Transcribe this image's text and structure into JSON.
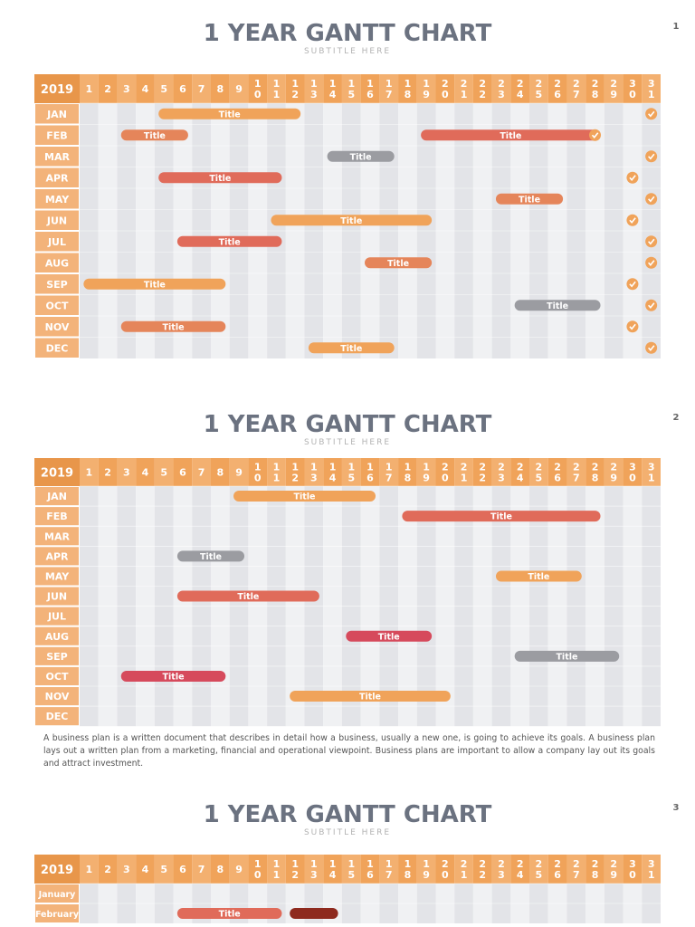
{
  "slides": [
    {
      "page": "1",
      "title": "1 YEAR GANTT CHART",
      "subtitle": "SUBTITLE HERE",
      "year": "2019",
      "days": [
        1,
        2,
        3,
        4,
        5,
        6,
        7,
        8,
        9,
        10,
        11,
        12,
        13,
        14,
        15,
        16,
        17,
        18,
        19,
        20,
        21,
        22,
        23,
        24,
        25,
        26,
        27,
        28,
        29,
        30,
        31
      ],
      "months": [
        "JAN",
        "FEB",
        "MAR",
        "APR",
        "MAY",
        "JUN",
        "JUL",
        "AUG",
        "SEP",
        "OCT",
        "NOV",
        "DEC"
      ],
      "month_lengths": [
        31,
        28,
        31,
        30,
        31,
        30,
        31,
        31,
        30,
        31,
        30,
        31
      ],
      "tasks": [
        {
          "month": 0,
          "start": 5,
          "end": 12,
          "label": "Title",
          "color": "#f0a35a"
        },
        {
          "month": 1,
          "start": 3,
          "end": 6,
          "label": "Title",
          "color": "#e5855a"
        },
        {
          "month": 1,
          "start": 19,
          "end": 28,
          "label": "Title",
          "color": "#e06b5a"
        },
        {
          "month": 2,
          "start": 14,
          "end": 17,
          "label": "Title",
          "color": "#9b9ca1"
        },
        {
          "month": 3,
          "start": 5,
          "end": 11,
          "label": "Title",
          "color": "#e06b5a"
        },
        {
          "month": 4,
          "start": 23,
          "end": 26,
          "label": "Title",
          "color": "#e5855a"
        },
        {
          "month": 5,
          "start": 11,
          "end": 19,
          "label": "Title",
          "color": "#f0a35a"
        },
        {
          "month": 6,
          "start": 6,
          "end": 11,
          "label": "Title",
          "color": "#e06b5a"
        },
        {
          "month": 7,
          "start": 16,
          "end": 19,
          "label": "Title",
          "color": "#e5855a"
        },
        {
          "month": 8,
          "start": 1,
          "end": 8,
          "label": "Title",
          "color": "#f0a35a"
        },
        {
          "month": 9,
          "start": 24,
          "end": 28,
          "label": "Title",
          "color": "#9b9ca1"
        },
        {
          "month": 10,
          "start": 3,
          "end": 8,
          "label": "Title",
          "color": "#e5855a"
        },
        {
          "month": 11,
          "start": 13,
          "end": 17,
          "label": "Title",
          "color": "#f0a35a"
        }
      ]
    },
    {
      "page": "2",
      "title": "1 YEAR GANTT CHART",
      "subtitle": "SUBTITLE HERE",
      "year": "2019",
      "days": [
        1,
        2,
        3,
        4,
        5,
        6,
        7,
        8,
        9,
        10,
        11,
        12,
        13,
        14,
        15,
        16,
        17,
        18,
        19,
        20,
        21,
        22,
        23,
        24,
        25,
        26,
        27,
        28,
        29,
        30,
        31
      ],
      "months": [
        "JAN",
        "FEB",
        "MAR",
        "APR",
        "MAY",
        "JUN",
        "JUL",
        "AUG",
        "SEP",
        "OCT",
        "NOV",
        "DEC"
      ],
      "tasks": [
        {
          "month": 0,
          "start": 9,
          "end": 16,
          "label": "Title",
          "color": "#f0a35a"
        },
        {
          "month": 1,
          "start": 18,
          "end": 28,
          "label": "Title",
          "color": "#e06b5a"
        },
        {
          "month": 3,
          "start": 6,
          "end": 9,
          "label": "Title",
          "color": "#9b9ca1"
        },
        {
          "month": 4,
          "start": 23,
          "end": 27,
          "label": "Title",
          "color": "#f0a35a"
        },
        {
          "month": 5,
          "start": 6,
          "end": 13,
          "label": "Title",
          "color": "#e06b5a"
        },
        {
          "month": 7,
          "start": 15,
          "end": 19,
          "label": "Title",
          "color": "#d64a5c"
        },
        {
          "month": 8,
          "start": 24,
          "end": 29,
          "label": "Title",
          "color": "#9b9ca1"
        },
        {
          "month": 9,
          "start": 3,
          "end": 8,
          "label": "Title",
          "color": "#d64a5c"
        },
        {
          "month": 10,
          "start": 12,
          "end": 20,
          "label": "Title",
          "color": "#f0a35a"
        }
      ],
      "note": "A business plan is a written document that describes in detail how a business, usually a new one, is going to achieve its goals. A business plan lays out a written plan from a marketing, financial and operational viewpoint. Business plans are important to allow a company lay out its goals and attract investment."
    },
    {
      "page": "3",
      "title": "1 YEAR GANTT CHART",
      "subtitle": "SUBTITLE HERE",
      "year": "2019",
      "days": [
        1,
        2,
        3,
        4,
        5,
        6,
        7,
        8,
        9,
        10,
        11,
        12,
        13,
        14,
        15,
        16,
        17,
        18,
        19,
        20,
        21,
        22,
        23,
        24,
        25,
        26,
        27,
        28,
        29,
        30,
        31
      ],
      "months": [
        "January",
        "February"
      ],
      "tasks": [
        {
          "month": 1,
          "start": 6,
          "end": 11,
          "label": "Title",
          "color": "#e06b5a"
        },
        {
          "month": 1,
          "start": 12,
          "end": 14,
          "color": "#8e2a1e"
        }
      ]
    }
  ]
}
